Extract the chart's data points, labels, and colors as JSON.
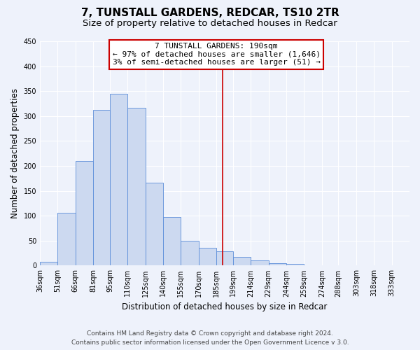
{
  "title": "7, TUNSTALL GARDENS, REDCAR, TS10 2TR",
  "subtitle": "Size of property relative to detached houses in Redcar",
  "xlabel": "Distribution of detached houses by size in Redcar",
  "ylabel": "Number of detached properties",
  "bar_color": "#ccd9f0",
  "bar_edge_color": "#5b8dd9",
  "background_color": "#eef2fb",
  "grid_color": "#ffffff",
  "categories": [
    "36sqm",
    "51sqm",
    "66sqm",
    "81sqm",
    "95sqm",
    "110sqm",
    "125sqm",
    "140sqm",
    "155sqm",
    "170sqm",
    "185sqm",
    "199sqm",
    "214sqm",
    "229sqm",
    "244sqm",
    "259sqm",
    "274sqm",
    "288sqm",
    "303sqm",
    "318sqm",
    "333sqm"
  ],
  "bar_heights": [
    7,
    106,
    210,
    313,
    344,
    317,
    166,
    97,
    50,
    36,
    29,
    18,
    10,
    5,
    3,
    1,
    1,
    0,
    0,
    0,
    0
  ],
  "bin_edges": [
    36,
    51,
    66,
    81,
    95,
    110,
    125,
    140,
    155,
    170,
    185,
    199,
    214,
    229,
    244,
    259,
    274,
    288,
    303,
    318,
    333,
    348
  ],
  "vline_x": 190,
  "vline_color": "#cc0000",
  "ylim": [
    0,
    450
  ],
  "yticks": [
    0,
    50,
    100,
    150,
    200,
    250,
    300,
    350,
    400,
    450
  ],
  "annotation_title": "7 TUNSTALL GARDENS: 190sqm",
  "annotation_line1": "← 97% of detached houses are smaller (1,646)",
  "annotation_line2": "3% of semi-detached houses are larger (51) →",
  "annotation_box_color": "#ffffff",
  "annotation_box_edge": "#cc0000",
  "footer_line1": "Contains HM Land Registry data © Crown copyright and database right 2024.",
  "footer_line2": "Contains public sector information licensed under the Open Government Licence v 3.0.",
  "title_fontsize": 11,
  "subtitle_fontsize": 9.5,
  "axis_label_fontsize": 8.5,
  "tick_fontsize": 7,
  "annotation_fontsize": 8,
  "footer_fontsize": 6.5
}
